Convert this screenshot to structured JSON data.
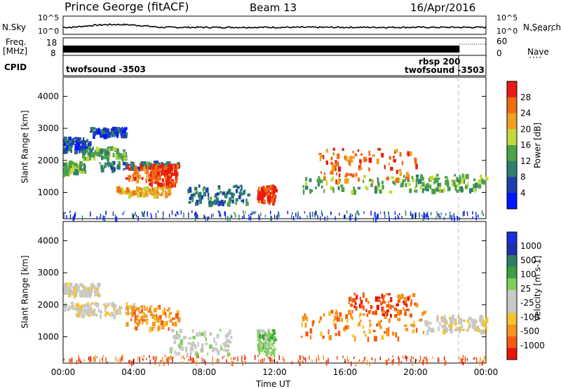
{
  "header": {
    "station": "Prince George (fitACF)",
    "beam": "Beam 13",
    "date": "16/Apr/2016"
  },
  "side_labels": {
    "nsky": "N.Sky",
    "nsearch": "N.Search",
    "freq": "Freq.",
    "mhz": "[MHz]",
    "nave": "Nave",
    "cpid": "CPID"
  },
  "noise_axis": {
    "left_ticks": [
      "10^5",
      "10^0"
    ],
    "right_ticks": [
      "10^5",
      "10^0"
    ]
  },
  "freq_axis": {
    "left_ticks": [
      "18",
      "8"
    ],
    "right_ticks": [
      "60",
      "0"
    ]
  },
  "cpid_labels": {
    "first": "twofsound -3503",
    "rbsp": "rbsp 200",
    "second": "twofsound -3503"
  },
  "axes": {
    "x_ticks": [
      "00:00",
      "04:00",
      "08:00",
      "12:00",
      "16:00",
      "20:00",
      "00:00"
    ],
    "x_label": "Time UT",
    "y_label": "Slant Range [km]",
    "y_ticks": [
      "1000",
      "2000",
      "3000",
      "4000"
    ]
  },
  "colors": {
    "power_scale": [
      "#0018ff",
      "#1e3fae",
      "#2e7f6d",
      "#4ea24a",
      "#c4d83c",
      "#f0a020",
      "#f06a10",
      "#e81c10"
    ],
    "velocity_scale": [
      "#e8160d",
      "#f35b10",
      "#f79320",
      "#f4c430",
      "#c8c8c4",
      "#c8c8c4",
      "#7fd05a",
      "#3ca040",
      "#2a8060",
      "#2030a8",
      "#1830d8"
    ]
  },
  "chart_data": [
    {
      "type": "line",
      "name": "N.Sky",
      "x_range_hours": [
        0,
        24
      ],
      "y_scale": "log",
      "y_range": [
        "10^0",
        "10^5"
      ],
      "note_values": "noise level roughly constant ~10^2.5 with bumps 00:00-05:00"
    },
    {
      "type": "heatmap",
      "title": "Power",
      "colorbar_label": "Power [dB]",
      "colorbar_ticks": [
        "4",
        "8",
        "12",
        "16",
        "20",
        "24",
        "28"
      ],
      "x_range_hours": [
        0,
        24
      ],
      "y_label": "Slant Range [km]",
      "y_range_km": [
        180,
        4600
      ],
      "regions": [
        {
          "t": [
            0.0,
            1.2
          ],
          "r": [
            1650,
            2000
          ],
          "level": 3
        },
        {
          "t": [
            0.0,
            1.5
          ],
          "r": [
            2350,
            2750
          ],
          "level": 1
        },
        {
          "t": [
            1.0,
            3.5
          ],
          "r": [
            2100,
            2450
          ],
          "level": 3
        },
        {
          "t": [
            1.5,
            3.5
          ],
          "r": [
            2800,
            3050
          ],
          "level": 1
        },
        {
          "t": [
            2.0,
            6.5
          ],
          "r": [
            1750,
            2000
          ],
          "level": 2
        },
        {
          "t": [
            3.5,
            6.5
          ],
          "r": [
            1400,
            1900
          ],
          "level": 6
        },
        {
          "t": [
            4.8,
            6.4
          ],
          "r": [
            1250,
            1900
          ],
          "level": 7
        },
        {
          "t": [
            3.0,
            6.0
          ],
          "r": [
            950,
            1200
          ],
          "level": 5
        },
        {
          "t": [
            7.0,
            10.5
          ],
          "r": [
            650,
            1250
          ],
          "level": 2
        },
        {
          "t": [
            11.0,
            12.0
          ],
          "r": [
            750,
            1250
          ],
          "level": 7
        },
        {
          "t": [
            13.5,
            22.8
          ],
          "r": [
            1050,
            1550
          ],
          "level": 3
        },
        {
          "t": [
            14.5,
            20.0
          ],
          "r": [
            1400,
            2400
          ],
          "level": 6
        },
        {
          "t": [
            20.0,
            24.0
          ],
          "r": [
            1100,
            1600
          ],
          "level": 3
        }
      ]
    },
    {
      "type": "heatmap",
      "title": "Velocity",
      "colorbar_label": "Velocity [m s-1]",
      "colorbar_ticks": [
        "-1000",
        "-500",
        "-100",
        "-25",
        "25",
        "100",
        "500",
        "1000"
      ],
      "x_range_hours": [
        0,
        24
      ],
      "y_label": "Slant Range [km]",
      "y_range_km": [
        180,
        4600
      ],
      "regions": [
        {
          "t": [
            0.0,
            2.0
          ],
          "r": [
            2350,
            2700
          ],
          "level": 4
        },
        {
          "t": [
            0.0,
            4.0
          ],
          "r": [
            1700,
            2100
          ],
          "level": 4
        },
        {
          "t": [
            3.5,
            6.5
          ],
          "r": [
            1300,
            2000
          ],
          "level": 2
        },
        {
          "t": [
            6.0,
            9.5
          ],
          "r": [
            500,
            1250
          ],
          "level": 5
        },
        {
          "t": [
            11.0,
            12.0
          ],
          "r": [
            500,
            1250
          ],
          "level": 6
        },
        {
          "t": [
            13.5,
            20.5
          ],
          "r": [
            1000,
            1850
          ],
          "level": 2
        },
        {
          "t": [
            16.0,
            20.0
          ],
          "r": [
            1700,
            2400
          ],
          "level": 1
        },
        {
          "t": [
            20.5,
            24.0
          ],
          "r": [
            1200,
            1700
          ],
          "level": 4
        }
      ]
    }
  ]
}
